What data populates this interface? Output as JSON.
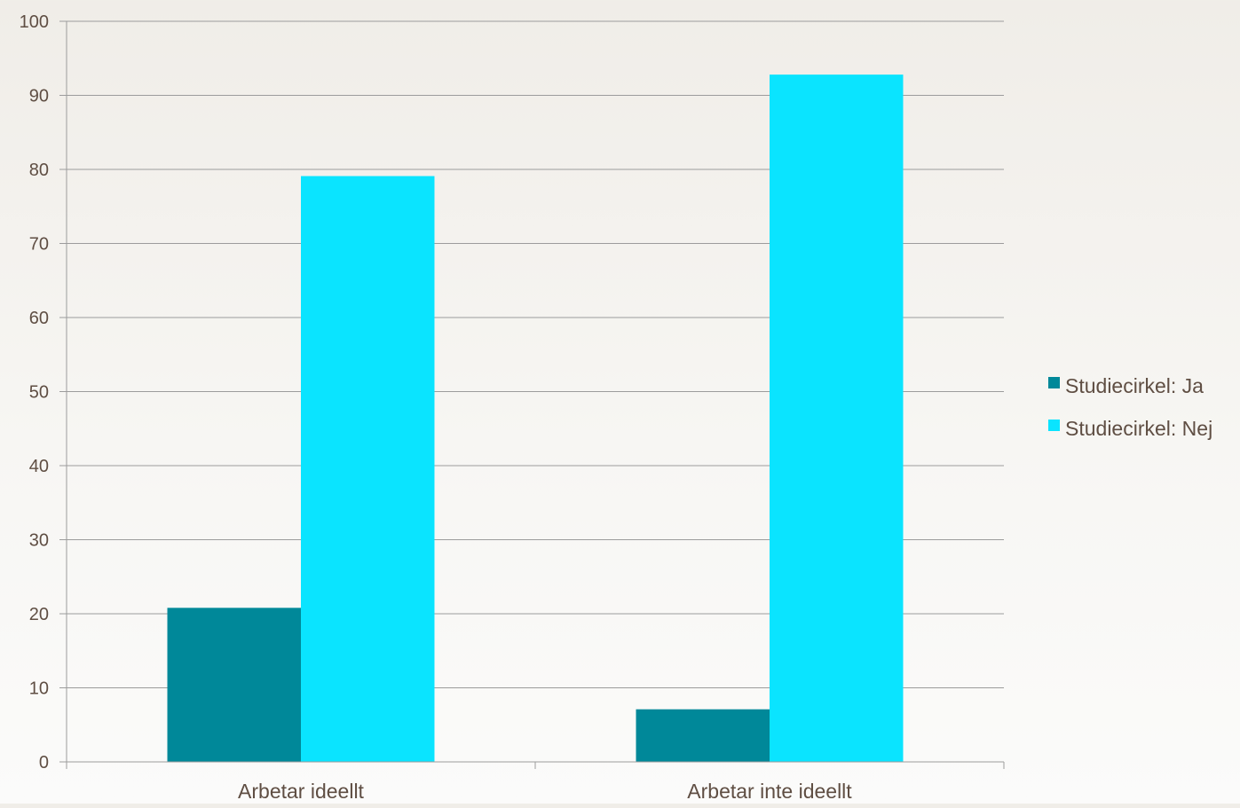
{
  "chart_data": {
    "type": "bar",
    "title": "",
    "xlabel": "",
    "ylabel": "",
    "categories": [
      "Arbetar ideellt",
      "Arbetar inte ideellt"
    ],
    "series": [
      {
        "name": "Studiecirkel: Ja",
        "values": [
          20.8,
          7.1
        ],
        "color": "#008899"
      },
      {
        "name": "Studiecirkel: Nej",
        "values": [
          79.1,
          92.8
        ],
        "color": "#0ae4ff"
      }
    ],
    "ylim": [
      0,
      100
    ],
    "yticks": [
      0,
      10,
      20,
      30,
      40,
      50,
      60,
      70,
      80,
      90,
      100
    ],
    "grid": true,
    "legend_position": "right",
    "colors": {
      "grid": "#9c9c9c",
      "axis": "#9c9c9c",
      "text": "#5f4e43"
    }
  }
}
